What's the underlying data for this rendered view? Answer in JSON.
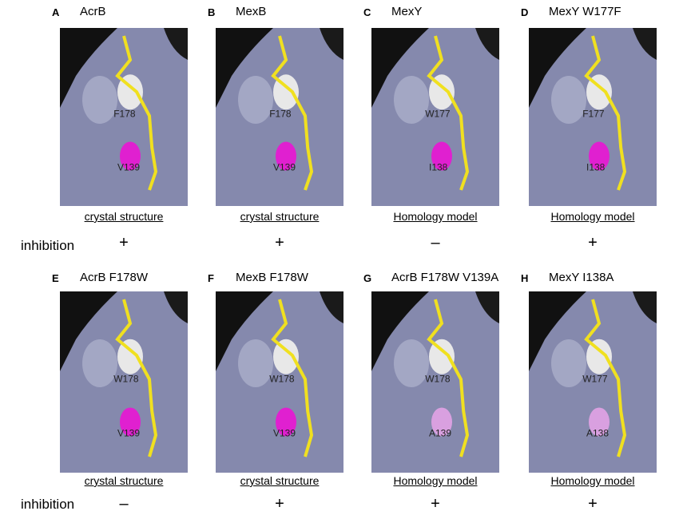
{
  "rows": [
    {
      "inhibition_label": "inhibition",
      "panels": [
        {
          "letter": "A",
          "title": "AcrB",
          "labels": [
            "F178",
            "V139"
          ],
          "caption": "crystal structure",
          "inhibition": "+"
        },
        {
          "letter": "B",
          "title": "MexB",
          "labels": [
            "F178",
            "V139"
          ],
          "caption": "crystal structure",
          "inhibition": "+"
        },
        {
          "letter": "C",
          "title": "MexY",
          "labels": [
            "W177",
            "I138"
          ],
          "caption": "Homology model",
          "inhibition": "–"
        },
        {
          "letter": "D",
          "title": "MexY W177F",
          "labels": [
            "F177",
            "I138"
          ],
          "caption": "Homology model",
          "inhibition": "+"
        }
      ]
    },
    {
      "inhibition_label": "inhibition",
      "panels": [
        {
          "letter": "E",
          "title": "AcrB F178W",
          "labels": [
            "W178",
            "V139"
          ],
          "caption": "crystal structure",
          "inhibition": "–"
        },
        {
          "letter": "F",
          "title": "MexB F178W",
          "labels": [
            "W178",
            "V139"
          ],
          "caption": "crystal structure",
          "inhibition": "+"
        },
        {
          "letter": "G",
          "title": "AcrB F178W V139A",
          "labels": [
            "W178",
            "A139"
          ],
          "caption": "Homology model",
          "inhibition": "+"
        },
        {
          "letter": "H",
          "title": "MexY I138A",
          "labels": [
            "W177",
            "A138"
          ],
          "caption": "Homology model",
          "inhibition": "+"
        }
      ]
    }
  ]
}
